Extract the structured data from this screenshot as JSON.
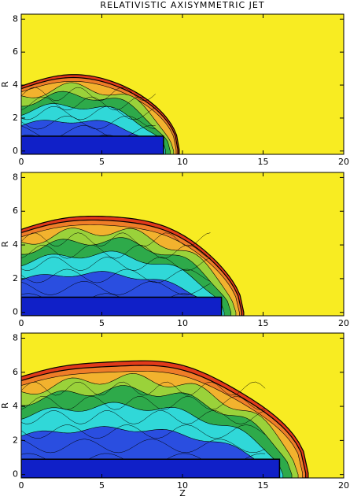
{
  "chart_data": [
    {
      "type": "contour",
      "title": "RELATIVISTIC AXISYMMETRIC JET",
      "y_label": "R",
      "xlim": [
        0,
        20
      ],
      "ylim": [
        -0.2,
        8.3
      ],
      "xticks": [
        0,
        5,
        10,
        15,
        20
      ],
      "yticks": [
        0,
        2,
        4,
        6,
        8
      ]
    },
    {
      "type": "contour",
      "y_label": "R",
      "xlim": [
        0,
        20
      ],
      "ylim": [
        -0.2,
        8.3
      ],
      "xticks": [
        0,
        5,
        10,
        15,
        20
      ],
      "yticks": [
        0,
        2,
        4,
        6,
        8
      ]
    },
    {
      "type": "contour",
      "y_label": "R",
      "x_label": "Z",
      "xlim": [
        0,
        20
      ],
      "ylim": [
        -0.2,
        8.3
      ],
      "xticks": [
        0,
        5,
        10,
        15,
        20
      ],
      "yticks": [
        0,
        2,
        4,
        6,
        8
      ]
    }
  ]
}
